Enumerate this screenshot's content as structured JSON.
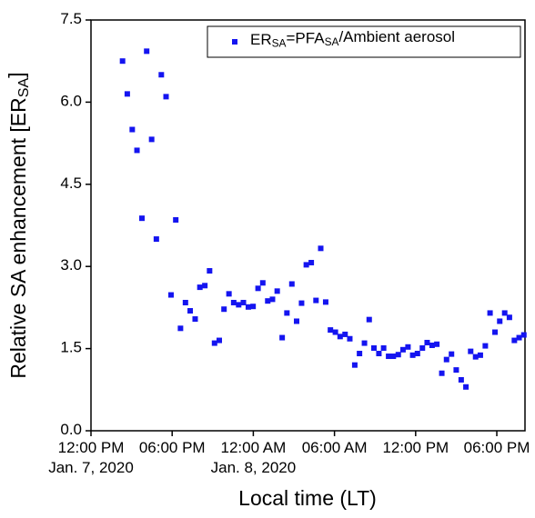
{
  "chart_data": {
    "type": "scatter",
    "xlabel": "Local time (LT)",
    "ylabel": "Relative SA enhancement [ER_{SA}]",
    "xlim": [
      "2020-01-07 12:00",
      "2020-01-08 20:05"
    ],
    "ylim": [
      0,
      7.5
    ],
    "xticks": [
      {
        "value": "2020-01-07 12:00",
        "label": "12:00 PM"
      },
      {
        "value": "2020-01-07 18:00",
        "label": "06:00 PM"
      },
      {
        "value": "2020-01-08 00:00",
        "label": "12:00 AM"
      },
      {
        "value": "2020-01-08 06:00",
        "label": "06:00 AM"
      },
      {
        "value": "2020-01-08 12:00",
        "label": "12:00 PM"
      },
      {
        "value": "2020-01-08 18:00",
        "label": "06:00 PM"
      }
    ],
    "xtick_dates": [
      {
        "value": "2020-01-07 12:00",
        "label": "Jan. 7, 2020"
      },
      {
        "value": "2020-01-08 00:00",
        "label": "Jan. 8, 2020"
      }
    ],
    "yticks": [
      {
        "value": 0,
        "label": "0.0"
      },
      1.5,
      {
        "value": 3,
        "label": "3.0"
      },
      4.5,
      {
        "value": 6,
        "label": "6.0"
      },
      7.5
    ],
    "legend": "upper right",
    "series": [
      {
        "name": "ER_{SA}=PFA_{SA}/Ambient aerosol",
        "color": "#1414f0",
        "x": [
          "2020-01-07 14:20",
          "2020-01-07 14:41",
          "2020-01-07 15:03",
          "2020-01-07 15:24",
          "2020-01-07 15:46",
          "2020-01-07 16:07",
          "2020-01-07 16:29",
          "2020-01-07 16:50",
          "2020-01-07 17:12",
          "2020-01-07 17:33",
          "2020-01-07 17:55",
          "2020-01-07 18:16",
          "2020-01-07 18:37",
          "2020-01-07 18:59",
          "2020-01-07 19:20",
          "2020-01-07 19:42",
          "2020-01-07 20:03",
          "2020-01-07 20:25",
          "2020-01-07 20:46",
          "2020-01-07 21:08",
          "2020-01-07 21:29",
          "2020-01-07 21:50",
          "2020-01-07 22:12",
          "2020-01-07 22:33",
          "2020-01-07 22:55",
          "2020-01-07 23:16",
          "2020-01-07 23:38",
          "2020-01-07 23:59",
          "2020-01-08 00:21",
          "2020-01-08 00:42",
          "2020-01-08 01:04",
          "2020-01-08 01:25",
          "2020-01-08 01:46",
          "2020-01-08 02:08",
          "2020-01-08 02:29",
          "2020-01-08 02:51",
          "2020-01-08 03:12",
          "2020-01-08 03:34",
          "2020-01-08 03:55",
          "2020-01-08 04:17",
          "2020-01-08 04:38",
          "2020-01-08 04:59",
          "2020-01-08 05:21",
          "2020-01-08 05:42",
          "2020-01-08 06:04",
          "2020-01-08 06:25",
          "2020-01-08 06:47",
          "2020-01-08 07:08",
          "2020-01-08 07:30",
          "2020-01-08 07:51",
          "2020-01-08 08:13",
          "2020-01-08 08:34",
          "2020-01-08 08:55",
          "2020-01-08 09:17",
          "2020-01-08 09:38",
          "2020-01-08 10:00",
          "2020-01-08 10:21",
          "2020-01-08 10:43",
          "2020-01-08 11:04",
          "2020-01-08 11:26",
          "2020-01-08 11:47",
          "2020-01-08 12:08",
          "2020-01-08 12:30",
          "2020-01-08 12:51",
          "2020-01-08 13:13",
          "2020-01-08 13:34",
          "2020-01-08 13:56",
          "2020-01-08 14:17",
          "2020-01-08 14:39",
          "2020-01-08 15:00",
          "2020-01-08 15:22",
          "2020-01-08 15:43",
          "2020-01-08 16:04",
          "2020-01-08 16:26",
          "2020-01-08 16:47",
          "2020-01-08 17:09",
          "2020-01-08 17:30",
          "2020-01-08 17:52",
          "2020-01-08 18:13",
          "2020-01-08 18:35",
          "2020-01-08 18:56",
          "2020-01-08 19:18",
          "2020-01-08 19:39",
          "2020-01-08 20:00"
        ],
        "values": [
          6.75,
          6.15,
          5.5,
          5.12,
          3.88,
          6.93,
          5.32,
          3.5,
          6.5,
          6.1,
          2.48,
          3.85,
          1.87,
          2.34,
          2.19,
          2.04,
          2.62,
          2.65,
          2.92,
          1.6,
          1.65,
          2.22,
          2.5,
          2.34,
          2.3,
          2.34,
          2.26,
          2.27,
          2.6,
          2.7,
          2.37,
          2.4,
          2.55,
          1.7,
          2.15,
          2.68,
          2.0,
          2.33,
          3.03,
          3.07,
          2.38,
          3.33,
          2.35,
          1.84,
          1.8,
          1.72,
          1.76,
          1.68,
          1.2,
          1.41,
          1.6,
          2.03,
          1.51,
          1.41,
          1.51,
          1.36,
          1.36,
          1.39,
          1.48,
          1.53,
          1.38,
          1.41,
          1.51,
          1.61,
          1.56,
          1.58,
          1.05,
          1.3,
          1.4,
          1.11,
          0.93,
          0.8,
          1.45,
          1.35,
          1.38,
          1.55,
          2.15,
          1.8,
          2.0,
          2.15,
          2.07,
          1.65,
          1.7,
          1.75
        ]
      }
    ]
  }
}
